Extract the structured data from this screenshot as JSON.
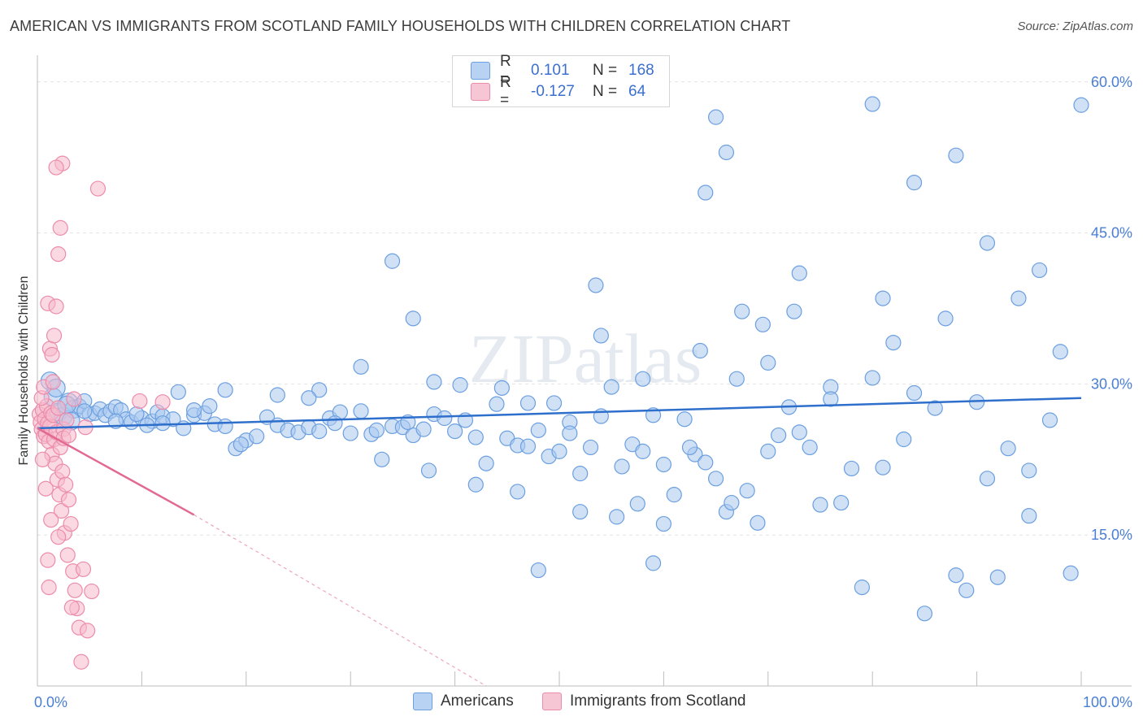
{
  "title": "AMERICAN VS IMMIGRANTS FROM SCOTLAND FAMILY HOUSEHOLDS WITH CHILDREN CORRELATION CHART",
  "source": "Source: ZipAtlas.com",
  "watermark": "ZIPatlas",
  "colors": {
    "blue_fill": "#a9c8ef",
    "blue_stroke": "#6b9fe0",
    "blue_line": "#2f6fcc",
    "pink_fill": "#f6b9cc",
    "pink_stroke": "#ec8cab",
    "pink_line": "#e26a92",
    "axis_text": "#4a7fd4",
    "grid": "#e2e2e2"
  },
  "legend_top": {
    "rows": [
      {
        "r_label": "R =",
        "r_value": "0.101",
        "n_label": "N =",
        "n_value": "168",
        "color": "blue"
      },
      {
        "r_label": "R =",
        "r_value": "-0.127",
        "n_label": "N =",
        "n_value": "64",
        "color": "pink"
      }
    ]
  },
  "legend_bottom": {
    "items": [
      {
        "label": "Americans",
        "color": "blue"
      },
      {
        "label": "Immigrants from Scotland",
        "color": "pink"
      }
    ]
  },
  "chart_data": {
    "type": "scatter",
    "title": "AMERICAN VS IMMIGRANTS FROM SCOTLAND FAMILY HOUSEHOLDS WITH CHILDREN CORRELATION CHART",
    "xlabel": "",
    "ylabel": "Family Households with Children",
    "xlim": [
      0,
      100
    ],
    "ylim": [
      0,
      62
    ],
    "x_tick_labels": [
      "0.0%",
      "100.0%"
    ],
    "y_ticks": [
      15,
      30,
      45,
      60
    ],
    "y_tick_labels": [
      "15.0%",
      "30.0%",
      "45.0%",
      "60.0%"
    ],
    "grid": true,
    "series": [
      {
        "name": "Americans",
        "color": "blue",
        "points": [
          [
            1.2,
            30.3
          ],
          [
            1.5,
            28.7
          ],
          [
            2.0,
            27.2
          ],
          [
            2.5,
            26.8
          ],
          [
            3.0,
            28.2
          ],
          [
            3.5,
            27.5
          ],
          [
            4.0,
            27.8
          ],
          [
            4.5,
            28.3
          ],
          [
            5.0,
            27.0
          ],
          [
            5.5,
            27.1
          ],
          [
            6.0,
            27.5
          ],
          [
            6.5,
            26.9
          ],
          [
            7.0,
            27.3
          ],
          [
            7.5,
            27.7
          ],
          [
            8.0,
            27.4
          ],
          [
            8.5,
            26.5
          ],
          [
            9.0,
            26.2
          ],
          [
            10.0,
            26.6
          ],
          [
            11.0,
            26.3
          ],
          [
            11.5,
            27.2
          ],
          [
            12.0,
            26.8
          ],
          [
            13.0,
            26.5
          ],
          [
            14.0,
            25.6
          ],
          [
            15.0,
            26.9
          ],
          [
            16.0,
            27.1
          ],
          [
            17.0,
            26.0
          ],
          [
            18.0,
            25.8
          ],
          [
            19.0,
            23.6
          ],
          [
            20.0,
            24.4
          ],
          [
            21.0,
            24.8
          ],
          [
            22.0,
            26.7
          ],
          [
            23.0,
            25.9
          ],
          [
            24.0,
            25.4
          ],
          [
            25.0,
            25.2
          ],
          [
            26.0,
            25.7
          ],
          [
            27.0,
            25.3
          ],
          [
            28.0,
            26.6
          ],
          [
            29.0,
            27.2
          ],
          [
            30.0,
            25.1
          ],
          [
            31.0,
            27.3
          ],
          [
            32.0,
            25.0
          ],
          [
            33.0,
            22.5
          ],
          [
            34.0,
            25.8
          ],
          [
            35.0,
            25.7
          ],
          [
            36.0,
            24.9
          ],
          [
            37.0,
            25.5
          ],
          [
            38.0,
            27.0
          ],
          [
            39.0,
            26.6
          ],
          [
            40.0,
            25.3
          ],
          [
            41.0,
            26.4
          ],
          [
            42.0,
            24.7
          ],
          [
            43.0,
            22.1
          ],
          [
            44.0,
            28.0
          ],
          [
            45.0,
            24.6
          ],
          [
            46.0,
            23.9
          ],
          [
            47.0,
            23.8
          ],
          [
            48.0,
            25.4
          ],
          [
            49.0,
            22.8
          ],
          [
            50.0,
            23.3
          ],
          [
            51.0,
            26.2
          ],
          [
            52.0,
            21.1
          ],
          [
            53.0,
            23.7
          ],
          [
            54.0,
            26.8
          ],
          [
            55.0,
            29.7
          ],
          [
            56.0,
            21.8
          ],
          [
            57.0,
            24.0
          ],
          [
            58.0,
            23.3
          ],
          [
            59.0,
            26.9
          ],
          [
            60.0,
            22.0
          ],
          [
            61.0,
            19.0
          ],
          [
            62.0,
            26.5
          ],
          [
            63.0,
            23.0
          ],
          [
            64.0,
            22.2
          ],
          [
            65.0,
            20.6
          ],
          [
            66.0,
            17.3
          ],
          [
            67.0,
            30.5
          ],
          [
            68.0,
            19.4
          ],
          [
            69.0,
            16.2
          ],
          [
            70.0,
            23.3
          ],
          [
            71.0,
            24.9
          ],
          [
            72.0,
            27.7
          ],
          [
            73.0,
            25.2
          ],
          [
            74.0,
            23.7
          ],
          [
            75.0,
            18.0
          ],
          [
            76.0,
            29.7
          ],
          [
            77.0,
            18.2
          ],
          [
            78.0,
            21.6
          ],
          [
            79.0,
            9.8
          ],
          [
            80.0,
            30.6
          ],
          [
            81.0,
            21.7
          ],
          [
            82.0,
            34.1
          ],
          [
            83.0,
            24.5
          ],
          [
            84.0,
            29.1
          ],
          [
            85.0,
            7.2
          ],
          [
            86.0,
            27.6
          ],
          [
            87.0,
            36.5
          ],
          [
            88.0,
            11.0
          ],
          [
            89.0,
            9.5
          ],
          [
            90.0,
            28.2
          ],
          [
            91.0,
            20.6
          ],
          [
            92.0,
            10.8
          ],
          [
            93.0,
            23.6
          ],
          [
            94.0,
            38.5
          ],
          [
            95.0,
            21.4
          ],
          [
            96.0,
            41.3
          ],
          [
            97.0,
            26.4
          ],
          [
            98.0,
            33.2
          ],
          [
            99.0,
            11.2
          ],
          [
            100.0,
            57.7
          ],
          [
            34.0,
            42.2
          ],
          [
            36.0,
            36.5
          ],
          [
            38.0,
            30.2
          ],
          [
            31.0,
            31.7
          ],
          [
            27.0,
            29.4
          ],
          [
            23.0,
            28.9
          ],
          [
            18.0,
            29.4
          ],
          [
            15.0,
            27.4
          ],
          [
            12.0,
            26.1
          ],
          [
            9.5,
            27.0
          ],
          [
            48.0,
            11.5
          ],
          [
            53.5,
            39.8
          ],
          [
            54.0,
            34.8
          ],
          [
            58.0,
            30.5
          ],
          [
            65.0,
            56.5
          ],
          [
            66.0,
            53.0
          ],
          [
            64.0,
            49.0
          ],
          [
            67.5,
            37.2
          ],
          [
            70.0,
            32.1
          ],
          [
            73.0,
            41.0
          ],
          [
            76.0,
            28.5
          ],
          [
            80.0,
            57.8
          ],
          [
            81.0,
            38.5
          ],
          [
            84.0,
            50.0
          ],
          [
            88.0,
            52.7
          ],
          [
            91.0,
            44.0
          ],
          [
            95.0,
            16.9
          ],
          [
            59.0,
            12.2
          ],
          [
            55.5,
            16.8
          ],
          [
            60.0,
            16.1
          ],
          [
            62.5,
            23.7
          ],
          [
            51.0,
            25.1
          ],
          [
            49.5,
            28.1
          ],
          [
            47.0,
            28.1
          ],
          [
            44.5,
            29.6
          ],
          [
            40.5,
            29.9
          ],
          [
            35.5,
            26.2
          ],
          [
            32.5,
            25.4
          ],
          [
            28.5,
            26.1
          ],
          [
            26.0,
            28.6
          ],
          [
            19.5,
            24.0
          ],
          [
            16.5,
            27.8
          ],
          [
            13.5,
            29.2
          ],
          [
            10.5,
            25.9
          ],
          [
            7.5,
            26.3
          ],
          [
            4.5,
            27.3
          ],
          [
            2.8,
            27.9
          ],
          [
            1.8,
            29.6
          ],
          [
            3.2,
            26.3
          ],
          [
            69.5,
            35.9
          ],
          [
            72.5,
            37.2
          ],
          [
            66.5,
            18.2
          ],
          [
            63.5,
            33.3
          ],
          [
            57.5,
            18.1
          ],
          [
            52.0,
            17.3
          ],
          [
            46.0,
            19.3
          ],
          [
            42.0,
            20.0
          ],
          [
            37.5,
            21.4
          ]
        ]
      },
      {
        "name": "Immigrants from Scotland",
        "color": "pink",
        "points": [
          [
            0.2,
            27.0
          ],
          [
            0.3,
            26.2
          ],
          [
            0.4,
            25.5
          ],
          [
            0.5,
            27.4
          ],
          [
            0.6,
            24.8
          ],
          [
            0.7,
            26.5
          ],
          [
            0.8,
            25.0
          ],
          [
            0.9,
            27.8
          ],
          [
            1.0,
            26.1
          ],
          [
            1.1,
            24.3
          ],
          [
            1.2,
            25.8
          ],
          [
            1.3,
            27.1
          ],
          [
            1.4,
            23.0
          ],
          [
            1.5,
            26.9
          ],
          [
            1.6,
            24.5
          ],
          [
            1.7,
            22.1
          ],
          [
            1.8,
            25.2
          ],
          [
            1.9,
            20.5
          ],
          [
            2.0,
            27.6
          ],
          [
            2.1,
            19.0
          ],
          [
            2.2,
            23.7
          ],
          [
            2.3,
            17.4
          ],
          [
            2.4,
            21.3
          ],
          [
            2.5,
            25.5
          ],
          [
            2.6,
            15.2
          ],
          [
            2.7,
            20.0
          ],
          [
            2.8,
            26.4
          ],
          [
            2.9,
            13.0
          ],
          [
            3.0,
            18.5
          ],
          [
            3.2,
            16.1
          ],
          [
            3.4,
            11.4
          ],
          [
            3.6,
            9.5
          ],
          [
            3.8,
            7.7
          ],
          [
            4.0,
            5.8
          ],
          [
            4.2,
            2.4
          ],
          [
            4.4,
            11.6
          ],
          [
            4.6,
            25.7
          ],
          [
            1.0,
            38.0
          ],
          [
            1.2,
            33.5
          ],
          [
            1.4,
            32.9
          ],
          [
            1.6,
            34.8
          ],
          [
            1.8,
            37.7
          ],
          [
            2.0,
            42.9
          ],
          [
            2.2,
            45.5
          ],
          [
            2.4,
            51.9
          ],
          [
            1.8,
            51.5
          ],
          [
            5.8,
            49.4
          ],
          [
            9.8,
            28.3
          ],
          [
            12.0,
            28.2
          ],
          [
            0.5,
            22.5
          ],
          [
            0.8,
            19.6
          ],
          [
            1.1,
            9.8
          ],
          [
            1.3,
            16.5
          ],
          [
            0.4,
            28.6
          ],
          [
            0.6,
            29.7
          ],
          [
            1.5,
            30.2
          ],
          [
            2.5,
            24.6
          ],
          [
            3.0,
            24.9
          ],
          [
            3.5,
            28.5
          ],
          [
            4.8,
            5.5
          ],
          [
            5.2,
            9.4
          ],
          [
            3.3,
            7.8
          ],
          [
            2.0,
            14.8
          ],
          [
            1.0,
            12.5
          ]
        ]
      }
    ],
    "trend_lines": [
      {
        "series": "Americans",
        "x": [
          0,
          100
        ],
        "y": [
          25.6,
          28.6
        ]
      },
      {
        "series": "Immigrants from Scotland",
        "x_solid": [
          0,
          15
        ],
        "y_solid": [
          25.6,
          17.0
        ],
        "x_dashed": [
          15,
          43
        ],
        "y_dashed": [
          17.0,
          0.0
        ]
      }
    ]
  }
}
